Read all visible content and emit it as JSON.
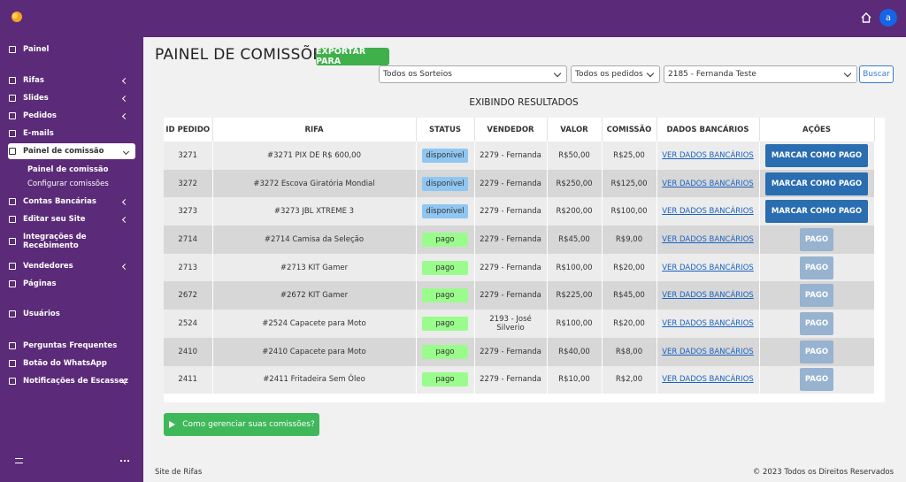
{
  "sidebar": {
    "items": [
      {
        "label": "Painel",
        "submenu": false
      },
      {
        "label": "Rifas",
        "submenu": true
      },
      {
        "label": "Slides",
        "submenu": true
      },
      {
        "label": "Pedidos",
        "submenu": true
      },
      {
        "label": "E-mails",
        "submenu": false
      },
      {
        "label": "Painel de comissão",
        "submenu": true,
        "active": true,
        "children": [
          "Painel de comissão",
          "Configurar comissões"
        ]
      },
      {
        "label": "Contas Bancárias",
        "submenu": true
      },
      {
        "label": "Editar seu Site",
        "submenu": true
      },
      {
        "label": "Integrações de Recebimento",
        "submenu": false
      },
      {
        "label": "Vendedores",
        "submenu": true
      },
      {
        "label": "Páginas",
        "submenu": false
      },
      {
        "label": "Usuários",
        "submenu": false
      },
      {
        "label": "Perguntas Frequentes",
        "submenu": false
      },
      {
        "label": "Botão do WhatsApp",
        "submenu": false
      },
      {
        "label": "Notificações de Escassez",
        "submenu": true
      }
    ]
  },
  "topbar": {
    "avatar": "a"
  },
  "header": {
    "title": "PAINEL DE COMISSÕES",
    "export_button": "EXPORTAR PARA"
  },
  "filters": {
    "sorteio": "Todos os Sorteios",
    "pedidos": "Todos os pedidos",
    "vendedor": "2185 - Fernanda Teste",
    "search_button": "Buscar"
  },
  "results_title": "EXIBINDO RESULTADOS",
  "table": {
    "headers": [
      "ID PEDIDO",
      "RIFA",
      "STATUS",
      "VENDEDOR",
      "VALOR",
      "COMISSÃO",
      "DADOS BANCÁRIOS",
      "AÇÕES"
    ],
    "rows": [
      [
        "3271",
        "#3271 PIX DE R$ 600,00",
        "disponivel",
        "2279 - Fernanda",
        "R$50,00",
        "R$25,00",
        "VER DADOS BANCÁRIOS",
        "MARCAR COMO PAGO"
      ],
      [
        "3272",
        "#3272 Escova Giratória Mondial",
        "disponivel",
        "2279 - Fernanda",
        "R$250,00",
        "R$125,00",
        "VER DADOS BANCÁRIOS",
        "MARCAR COMO PAGO"
      ],
      [
        "3273",
        "#3273 JBL XTREME 3",
        "disponivel",
        "2279 - Fernanda",
        "R$200,00",
        "R$100,00",
        "VER DADOS BANCÁRIOS",
        "MARCAR COMO PAGO"
      ],
      [
        "2714",
        "#2714 Camisa da Seleção",
        "pago",
        "2279 - Fernanda",
        "R$45,00",
        "R$9,00",
        "VER DADOS BANCÁRIOS",
        "PAGO"
      ],
      [
        "2713",
        "#2713 KIT Gamer",
        "pago",
        "2279 - Fernanda",
        "R$100,00",
        "R$20,00",
        "VER DADOS BANCÁRIOS",
        "PAGO"
      ],
      [
        "2672",
        "#2672 KIT Gamer",
        "pago",
        "2279 - Fernanda",
        "R$225,00",
        "R$45,00",
        "VER DADOS BANCÁRIOS",
        "PAGO"
      ],
      [
        "2524",
        "#2524 Capacete para Moto",
        "pago",
        "2193 - José Silverio",
        "R$100,00",
        "R$20,00",
        "VER DADOS BANCÁRIOS",
        "PAGO"
      ],
      [
        "2410",
        "#2410 Capacete para Moto",
        "pago",
        "2279 - Fernanda",
        "R$40,00",
        "R$8,00",
        "VER DADOS BANCÁRIOS",
        "PAGO"
      ],
      [
        "2411",
        "#2411 Fritadeira Sem Óleo",
        "pago",
        "2279 - Fernanda",
        "R$10,00",
        "R$2,00",
        "VER DADOS BANCÁRIOS",
        "PAGO"
      ]
    ]
  },
  "help_button": "Como gerenciar suas comissões?",
  "footer": {
    "left": "Site de Rifas",
    "right": "© 2023 Todos os Direitos Reservados"
  }
}
